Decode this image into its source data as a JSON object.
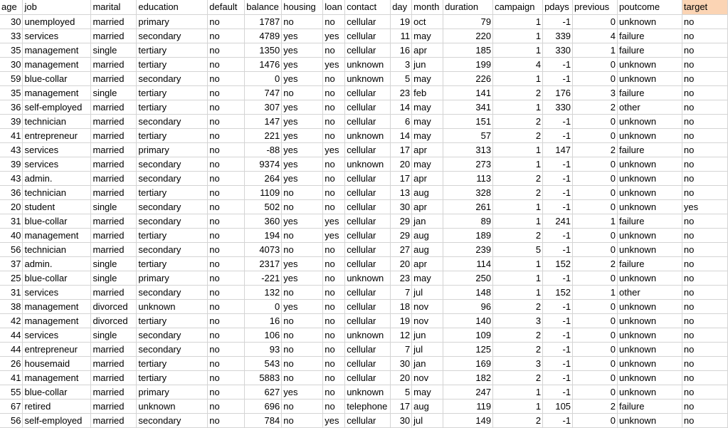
{
  "columns": [
    "age",
    "job",
    "marital",
    "education",
    "default",
    "balance",
    "housing",
    "loan",
    "contact",
    "day",
    "month",
    "duration",
    "campaign",
    "pdays",
    "previous",
    "poutcome",
    "target"
  ],
  "rows": [
    [
      "30",
      "unemployed",
      "married",
      "primary",
      "no",
      "1787",
      "no",
      "no",
      "cellular",
      "19",
      "oct",
      "79",
      "1",
      "-1",
      "0",
      "unknown",
      "no"
    ],
    [
      "33",
      "services",
      "married",
      "secondary",
      "no",
      "4789",
      "yes",
      "yes",
      "cellular",
      "11",
      "may",
      "220",
      "1",
      "339",
      "4",
      "failure",
      "no"
    ],
    [
      "35",
      "management",
      "single",
      "tertiary",
      "no",
      "1350",
      "yes",
      "no",
      "cellular",
      "16",
      "apr",
      "185",
      "1",
      "330",
      "1",
      "failure",
      "no"
    ],
    [
      "30",
      "management",
      "married",
      "tertiary",
      "no",
      "1476",
      "yes",
      "yes",
      "unknown",
      "3",
      "jun",
      "199",
      "4",
      "-1",
      "0",
      "unknown",
      "no"
    ],
    [
      "59",
      "blue-collar",
      "married",
      "secondary",
      "no",
      "0",
      "yes",
      "no",
      "unknown",
      "5",
      "may",
      "226",
      "1",
      "-1",
      "0",
      "unknown",
      "no"
    ],
    [
      "35",
      "management",
      "single",
      "tertiary",
      "no",
      "747",
      "no",
      "no",
      "cellular",
      "23",
      "feb",
      "141",
      "2",
      "176",
      "3",
      "failure",
      "no"
    ],
    [
      "36",
      "self-employed",
      "married",
      "tertiary",
      "no",
      "307",
      "yes",
      "no",
      "cellular",
      "14",
      "may",
      "341",
      "1",
      "330",
      "2",
      "other",
      "no"
    ],
    [
      "39",
      "technician",
      "married",
      "secondary",
      "no",
      "147",
      "yes",
      "no",
      "cellular",
      "6",
      "may",
      "151",
      "2",
      "-1",
      "0",
      "unknown",
      "no"
    ],
    [
      "41",
      "entrepreneur",
      "married",
      "tertiary",
      "no",
      "221",
      "yes",
      "no",
      "unknown",
      "14",
      "may",
      "57",
      "2",
      "-1",
      "0",
      "unknown",
      "no"
    ],
    [
      "43",
      "services",
      "married",
      "primary",
      "no",
      "-88",
      "yes",
      "yes",
      "cellular",
      "17",
      "apr",
      "313",
      "1",
      "147",
      "2",
      "failure",
      "no"
    ],
    [
      "39",
      "services",
      "married",
      "secondary",
      "no",
      "9374",
      "yes",
      "no",
      "unknown",
      "20",
      "may",
      "273",
      "1",
      "-1",
      "0",
      "unknown",
      "no"
    ],
    [
      "43",
      "admin.",
      "married",
      "secondary",
      "no",
      "264",
      "yes",
      "no",
      "cellular",
      "17",
      "apr",
      "113",
      "2",
      "-1",
      "0",
      "unknown",
      "no"
    ],
    [
      "36",
      "technician",
      "married",
      "tertiary",
      "no",
      "1109",
      "no",
      "no",
      "cellular",
      "13",
      "aug",
      "328",
      "2",
      "-1",
      "0",
      "unknown",
      "no"
    ],
    [
      "20",
      "student",
      "single",
      "secondary",
      "no",
      "502",
      "no",
      "no",
      "cellular",
      "30",
      "apr",
      "261",
      "1",
      "-1",
      "0",
      "unknown",
      "yes"
    ],
    [
      "31",
      "blue-collar",
      "married",
      "secondary",
      "no",
      "360",
      "yes",
      "yes",
      "cellular",
      "29",
      "jan",
      "89",
      "1",
      "241",
      "1",
      "failure",
      "no"
    ],
    [
      "40",
      "management",
      "married",
      "tertiary",
      "no",
      "194",
      "no",
      "yes",
      "cellular",
      "29",
      "aug",
      "189",
      "2",
      "-1",
      "0",
      "unknown",
      "no"
    ],
    [
      "56",
      "technician",
      "married",
      "secondary",
      "no",
      "4073",
      "no",
      "no",
      "cellular",
      "27",
      "aug",
      "239",
      "5",
      "-1",
      "0",
      "unknown",
      "no"
    ],
    [
      "37",
      "admin.",
      "single",
      "tertiary",
      "no",
      "2317",
      "yes",
      "no",
      "cellular",
      "20",
      "apr",
      "114",
      "1",
      "152",
      "2",
      "failure",
      "no"
    ],
    [
      "25",
      "blue-collar",
      "single",
      "primary",
      "no",
      "-221",
      "yes",
      "no",
      "unknown",
      "23",
      "may",
      "250",
      "1",
      "-1",
      "0",
      "unknown",
      "no"
    ],
    [
      "31",
      "services",
      "married",
      "secondary",
      "no",
      "132",
      "no",
      "no",
      "cellular",
      "7",
      "jul",
      "148",
      "1",
      "152",
      "1",
      "other",
      "no"
    ],
    [
      "38",
      "management",
      "divorced",
      "unknown",
      "no",
      "0",
      "yes",
      "no",
      "cellular",
      "18",
      "nov",
      "96",
      "2",
      "-1",
      "0",
      "unknown",
      "no"
    ],
    [
      "42",
      "management",
      "divorced",
      "tertiary",
      "no",
      "16",
      "no",
      "no",
      "cellular",
      "19",
      "nov",
      "140",
      "3",
      "-1",
      "0",
      "unknown",
      "no"
    ],
    [
      "44",
      "services",
      "single",
      "secondary",
      "no",
      "106",
      "no",
      "no",
      "unknown",
      "12",
      "jun",
      "109",
      "2",
      "-1",
      "0",
      "unknown",
      "no"
    ],
    [
      "44",
      "entrepreneur",
      "married",
      "secondary",
      "no",
      "93",
      "no",
      "no",
      "cellular",
      "7",
      "jul",
      "125",
      "2",
      "-1",
      "0",
      "unknown",
      "no"
    ],
    [
      "26",
      "housemaid",
      "married",
      "tertiary",
      "no",
      "543",
      "no",
      "no",
      "cellular",
      "30",
      "jan",
      "169",
      "3",
      "-1",
      "0",
      "unknown",
      "no"
    ],
    [
      "41",
      "management",
      "married",
      "tertiary",
      "no",
      "5883",
      "no",
      "no",
      "cellular",
      "20",
      "nov",
      "182",
      "2",
      "-1",
      "0",
      "unknown",
      "no"
    ],
    [
      "55",
      "blue-collar",
      "married",
      "primary",
      "no",
      "627",
      "yes",
      "no",
      "unknown",
      "5",
      "may",
      "247",
      "1",
      "-1",
      "0",
      "unknown",
      "no"
    ],
    [
      "67",
      "retired",
      "married",
      "unknown",
      "no",
      "696",
      "no",
      "no",
      "telephone",
      "17",
      "aug",
      "119",
      "1",
      "105",
      "2",
      "failure",
      "no"
    ],
    [
      "56",
      "self-employed",
      "married",
      "secondary",
      "no",
      "784",
      "no",
      "yes",
      "cellular",
      "30",
      "jul",
      "149",
      "2",
      "-1",
      "0",
      "unknown",
      "no"
    ]
  ],
  "colors": {
    "target_header_bg": "#fbd4b4",
    "gridline": "#d4d4d4"
  }
}
